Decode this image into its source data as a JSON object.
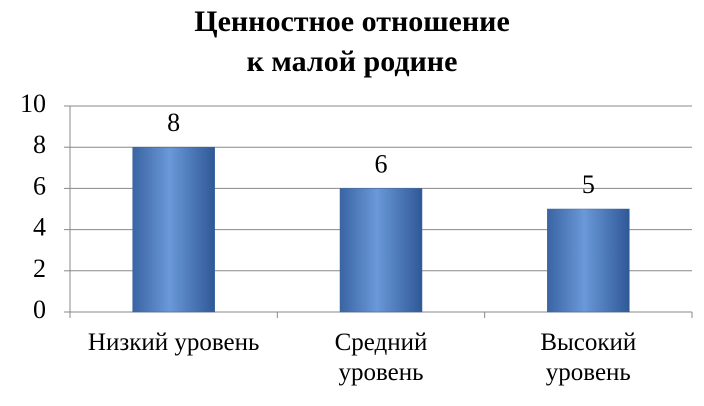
{
  "chart_data": {
    "type": "bar",
    "title": "Ценностное отношение\nк малой родине",
    "categories": [
      "Низкий уровень",
      "Средний\nуровень",
      "Высокий\nуровень"
    ],
    "values": [
      8,
      6,
      5
    ],
    "color": "#4f81bd",
    "ylim": [
      0,
      10
    ],
    "yticks": [
      0,
      2,
      4,
      6,
      8,
      10
    ],
    "grid": true
  }
}
